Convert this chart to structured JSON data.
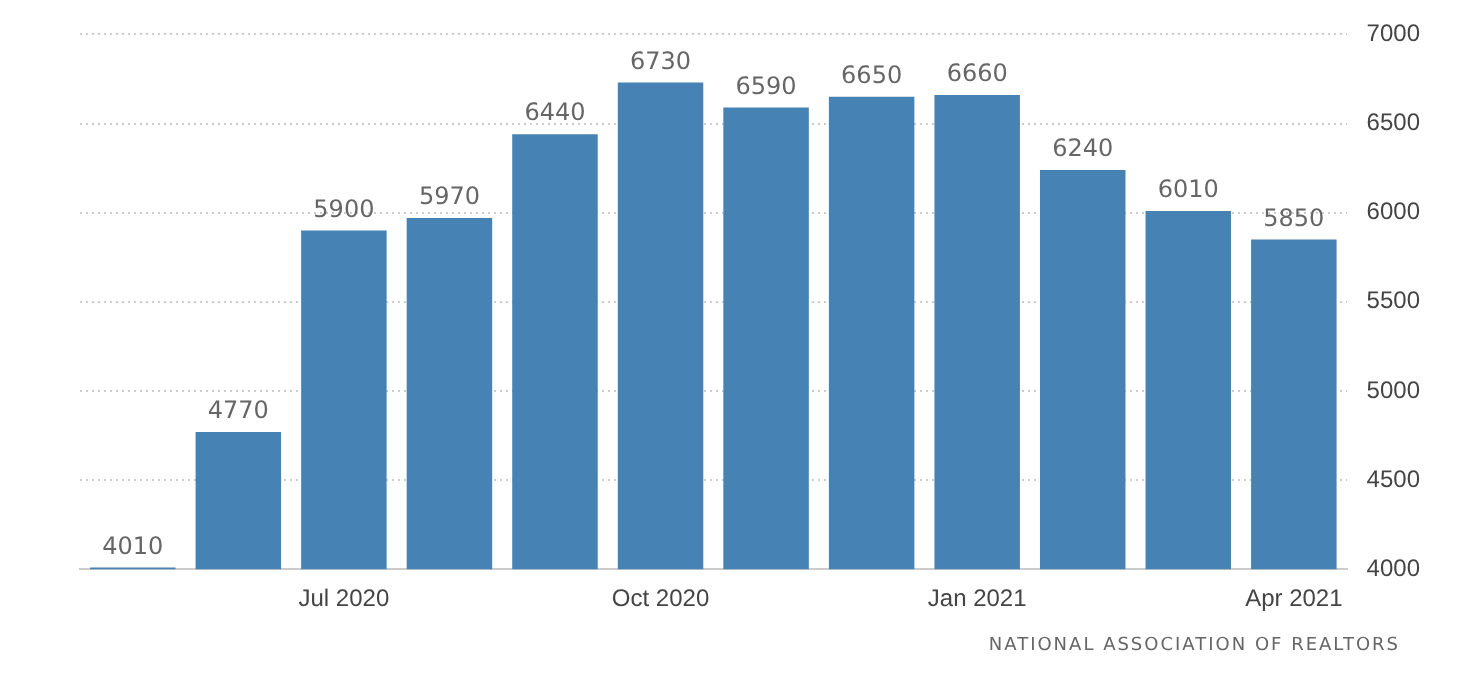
{
  "chart_data": {
    "type": "bar",
    "categories": [
      null,
      null,
      "Jul 2020",
      null,
      null,
      "Oct 2020",
      null,
      null,
      "Jan 2021",
      null,
      null,
      "Apr 2021"
    ],
    "values": [
      4010,
      4770,
      5900,
      5970,
      6440,
      6730,
      6590,
      6650,
      6660,
      6240,
      6010,
      5850
    ],
    "color": "#4682b4",
    "ylim": [
      4000,
      7000
    ],
    "yticks": [
      4000,
      4500,
      5000,
      5500,
      6000,
      6500,
      7000
    ],
    "grid": "y",
    "data_labels": true,
    "legend": false,
    "annotations": [
      "NATIONAL ASSOCIATION OF REALTORS"
    ]
  }
}
